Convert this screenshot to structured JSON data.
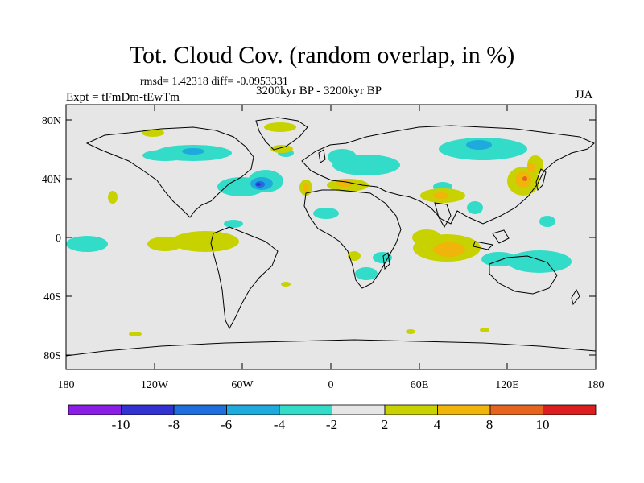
{
  "header": {
    "title": "Tot. Cloud Cov. (random overlap, in %)",
    "stats": "rmsd= 1.42318 diff= -0.0953331",
    "experiment": "Expt = tFmDm-tEwTm",
    "period": "3200kyr BP - 3200kyr BP",
    "season": "JJA"
  },
  "axes": {
    "lat_ticks": [
      "80N",
      "40N",
      "0",
      "40S",
      "80S"
    ],
    "lon_ticks": [
      "180",
      "120W",
      "60W",
      "0",
      "60E",
      "120E",
      "180"
    ]
  },
  "colorbar": {
    "labels": [
      "-10",
      "-8",
      "-6",
      "-4",
      "-2",
      "2",
      "4",
      "8",
      "10"
    ],
    "colors": [
      "#8a1ee6",
      "#3232d2",
      "#1e6edc",
      "#1eaadc",
      "#32dcc8",
      "#e6e6e6",
      "#c8d200",
      "#f0b40a",
      "#e6641e",
      "#dc1e1e"
    ]
  },
  "colors": {
    "land_bg": "#e6e6e6",
    "frame": "#000000"
  }
}
